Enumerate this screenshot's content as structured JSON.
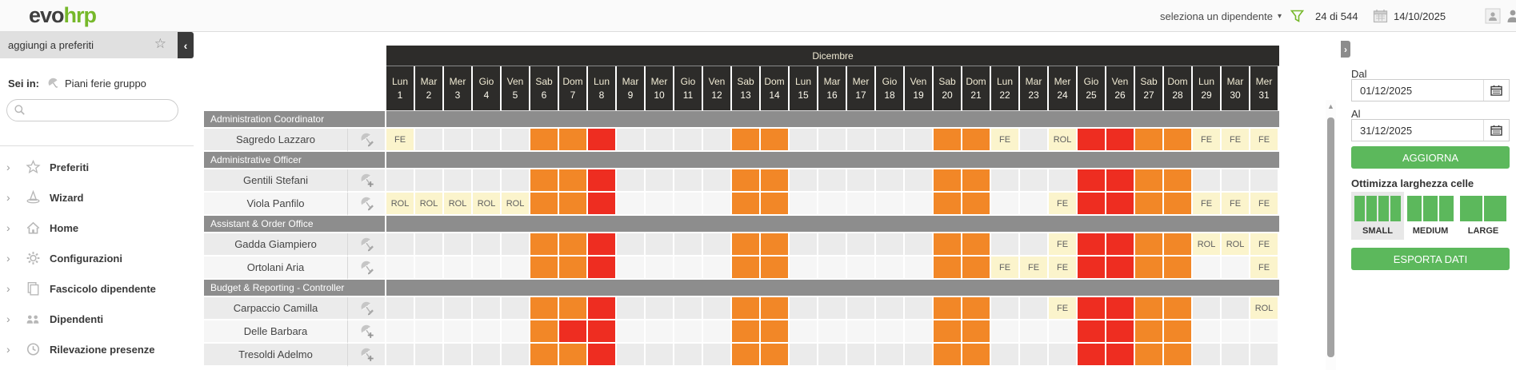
{
  "header": {
    "logo_part1": "evo",
    "logo_part2": "hrp",
    "employee_select": "seleziona un dipendente",
    "filter_count": "24 di 544",
    "date": "14/10/2025"
  },
  "sidebar": {
    "favorites_label": "aggiungi a preferiti",
    "breadcrumb_prefix": "Sei in:",
    "breadcrumb_page": "Piani ferie gruppo",
    "search_placeholder": "",
    "menu": [
      {
        "label": "Preferiti",
        "icon": "star-icon"
      },
      {
        "label": "Wizard",
        "icon": "wizard-hat-icon"
      },
      {
        "label": "Home",
        "icon": "home-icon"
      },
      {
        "label": "Configurazioni",
        "icon": "gear-icon"
      },
      {
        "label": "Fascicolo dipendente",
        "icon": "documents-icon"
      },
      {
        "label": "Dipendenti",
        "icon": "people-icon"
      },
      {
        "label": "Rilevazione presenze",
        "icon": "clock-icon"
      }
    ]
  },
  "calendar": {
    "month": "Dicembre",
    "days": [
      {
        "n": "Lun",
        "d": 1
      },
      {
        "n": "Mar",
        "d": 2
      },
      {
        "n": "Mer",
        "d": 3
      },
      {
        "n": "Gio",
        "d": 4
      },
      {
        "n": "Ven",
        "d": 5
      },
      {
        "n": "Sab",
        "d": 6
      },
      {
        "n": "Dom",
        "d": 7
      },
      {
        "n": "Lun",
        "d": 8
      },
      {
        "n": "Mar",
        "d": 9
      },
      {
        "n": "Mer",
        "d": 10
      },
      {
        "n": "Gio",
        "d": 11
      },
      {
        "n": "Ven",
        "d": 12
      },
      {
        "n": "Sab",
        "d": 13
      },
      {
        "n": "Dom",
        "d": 14
      },
      {
        "n": "Lun",
        "d": 15
      },
      {
        "n": "Mar",
        "d": 16
      },
      {
        "n": "Mer",
        "d": 17
      },
      {
        "n": "Gio",
        "d": 18
      },
      {
        "n": "Ven",
        "d": 19
      },
      {
        "n": "Sab",
        "d": 20
      },
      {
        "n": "Dom",
        "d": 21
      },
      {
        "n": "Lun",
        "d": 22
      },
      {
        "n": "Mar",
        "d": 23
      },
      {
        "n": "Mer",
        "d": 24
      },
      {
        "n": "Gio",
        "d": 25
      },
      {
        "n": "Ven",
        "d": 26
      },
      {
        "n": "Sab",
        "d": 27
      },
      {
        "n": "Dom",
        "d": 28
      },
      {
        "n": "Lun",
        "d": 29
      },
      {
        "n": "Mar",
        "d": 30
      },
      {
        "n": "Mer",
        "d": 31
      }
    ],
    "cell_colors": {
      "WE": "#F28727",
      "HO": "#EE2D21",
      "FE": "#FBF4CC",
      "ROL": "#FBF4CC"
    },
    "groups": [
      {
        "name": "Administration Coordinator",
        "employees": [
          {
            "name": "Sagredo Lazzaro",
            "action": "edit",
            "cells": {
              "1": "FE",
              "6": "WE",
              "7": "WE",
              "8": "HO",
              "13": "WE",
              "14": "WE",
              "20": "WE",
              "21": "WE",
              "22": "FE",
              "24": "ROL",
              "25": "HO",
              "26": "HO",
              "27": "WE",
              "28": "WE",
              "29": "FE",
              "30": "FE",
              "31": "FE"
            }
          }
        ]
      },
      {
        "name": "Administrative Officer",
        "employees": [
          {
            "name": "Gentili Stefani",
            "action": "add",
            "cells": {
              "6": "WE",
              "7": "WE",
              "8": "HO",
              "13": "WE",
              "14": "WE",
              "20": "WE",
              "21": "WE",
              "25": "HO",
              "26": "HO",
              "27": "WE",
              "28": "WE"
            }
          },
          {
            "name": "Viola Panfilo",
            "action": "edit",
            "cells": {
              "1": "ROL",
              "2": "ROL",
              "3": "ROL",
              "4": "ROL",
              "5": "ROL",
              "6": "WE",
              "7": "WE",
              "8": "HO",
              "13": "WE",
              "14": "WE",
              "20": "WE",
              "21": "WE",
              "24": "FE",
              "25": "HO",
              "26": "HO",
              "27": "WE",
              "28": "WE",
              "29": "FE",
              "30": "FE",
              "31": "FE"
            }
          }
        ]
      },
      {
        "name": "Assistant & Order Office",
        "employees": [
          {
            "name": "Gadda Giampiero",
            "action": "edit",
            "cells": {
              "6": "WE",
              "7": "WE",
              "8": "HO",
              "13": "WE",
              "14": "WE",
              "20": "WE",
              "21": "WE",
              "24": "FE",
              "25": "HO",
              "26": "HO",
              "27": "WE",
              "28": "WE",
              "29": "ROL",
              "30": "ROL",
              "31": "FE"
            }
          },
          {
            "name": "Ortolani Aria",
            "action": "edit",
            "cells": {
              "6": "WE",
              "7": "WE",
              "8": "HO",
              "13": "WE",
              "14": "WE",
              "20": "WE",
              "21": "WE",
              "22": "FE",
              "23": "FE",
              "24": "FE",
              "25": "HO",
              "26": "HO",
              "27": "WE",
              "28": "WE",
              "31": "FE"
            }
          }
        ]
      },
      {
        "name": "Budget & Reporting - Controller",
        "employees": [
          {
            "name": "Carpaccio Camilla",
            "action": "edit",
            "cells": {
              "6": "WE",
              "7": "WE",
              "8": "HO",
              "13": "WE",
              "14": "WE",
              "20": "WE",
              "21": "WE",
              "24": "FE",
              "25": "HO",
              "26": "HO",
              "27": "WE",
              "28": "WE",
              "31": "ROL"
            }
          },
          {
            "name": "Delle Barbara",
            "action": "add",
            "cells": {
              "6": "WE",
              "7": "HO",
              "8": "HO",
              "13": "WE",
              "14": "WE",
              "20": "WE",
              "21": "WE",
              "25": "HO",
              "26": "HO",
              "27": "WE",
              "28": "WE"
            }
          },
          {
            "name": "Tresoldi Adelmo",
            "action": "add",
            "cells": {
              "6": "WE",
              "7": "WE",
              "8": "HO",
              "13": "WE",
              "14": "WE",
              "20": "WE",
              "21": "WE",
              "25": "HO",
              "26": "HO",
              "27": "WE",
              "28": "WE"
            }
          }
        ]
      }
    ]
  },
  "panel": {
    "dal_label": "Dal",
    "dal_value": "01/12/2025",
    "al_label": "Al",
    "al_value": "31/12/2025",
    "aggiorna_label": "AGGIORNA",
    "optimize_label": "Ottimizza larghezza celle",
    "sizes": [
      {
        "label": "SMALL",
        "bars": 4
      },
      {
        "label": "MEDIUM",
        "bars": 3
      },
      {
        "label": "LARGE",
        "bars": 2
      }
    ],
    "selected_size": "SMALL",
    "esporta_label": "ESPORTA DATI"
  },
  "colors": {
    "brand_green": "#76B82A",
    "button_green": "#5CB85C",
    "weekend_orange": "#F28727",
    "holiday_red": "#EE2D21",
    "leave_yellow": "#FBF4CC",
    "group_gray": "#8D8D8D",
    "header_dark": "#2D2C2A"
  }
}
